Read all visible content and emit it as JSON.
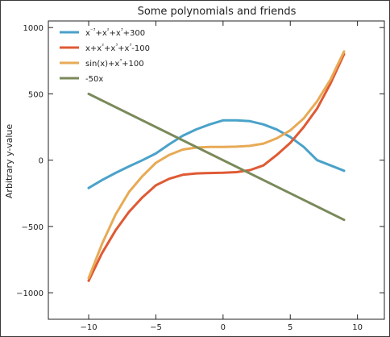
{
  "chart_data": {
    "type": "line",
    "title": "Some polynomials and friends",
    "xlabel": "",
    "ylabel": "Arbitrary y-value",
    "xlim": [
      -13,
      12
    ],
    "ylim": [
      -1200,
      1050
    ],
    "xticks": [
      -10,
      -5,
      0,
      5,
      10
    ],
    "xtick_labels": [
      "−10",
      "−5",
      "0",
      "5",
      "10"
    ],
    "yticks": [
      -1000,
      -500,
      0,
      500,
      1000
    ],
    "ytick_labels": [
      "−1000",
      "−500",
      "0",
      "500",
      "1000"
    ],
    "grid": false,
    "legend_position": "top-left",
    "series": [
      {
        "name": "x⁻³+x²+x³+300",
        "legend_main": "x",
        "legend_parts": [
          {
            "t": "x"
          },
          {
            "t": "⁻³",
            "sup": true
          },
          {
            "t": "+x"
          },
          {
            "t": "²",
            "sup": true
          },
          {
            "t": "+x"
          },
          {
            "t": "³",
            "sup": true
          },
          {
            "t": "+300"
          }
        ],
        "color": "#4aa2c9",
        "x": [
          -10,
          -9,
          -8,
          -7,
          -6,
          -5,
          -4,
          -3,
          -2,
          -1,
          0,
          1,
          2,
          3,
          4,
          5,
          6,
          7,
          8,
          9
        ],
        "y": [
          -210,
          -150,
          -96,
          -47,
          0,
          50,
          120,
          184,
          232,
          270,
          300,
          300,
          294,
          270,
          231,
          175,
          100,
          0,
          -40,
          -80
        ]
      },
      {
        "name": "x+x²+x³+x³-100",
        "legend_parts": [
          {
            "t": "x+x"
          },
          {
            "t": "²",
            "sup": true
          },
          {
            "t": "+x"
          },
          {
            "t": "³",
            "sup": true
          },
          {
            "t": "+x"
          },
          {
            "t": "³",
            "sup": true
          },
          {
            "t": "-100"
          }
        ],
        "color": "#df5a34",
        "x": [
          -10,
          -9,
          -8,
          -7,
          -6,
          -5,
          -4,
          -3,
          -2,
          -1,
          0,
          1,
          2,
          3,
          4,
          5,
          6,
          7,
          8,
          9
        ],
        "y": [
          -910,
          -700,
          -530,
          -390,
          -280,
          -190,
          -140,
          -110,
          -100,
          -97,
          -95,
          -90,
          -75,
          -40,
          40,
          130,
          250,
          390,
          580,
          800
        ]
      },
      {
        "name": "sin(x)+x³+100",
        "legend_parts": [
          {
            "t": "sin(x)+x"
          },
          {
            "t": "³",
            "sup": true
          },
          {
            "t": "+100"
          }
        ],
        "color": "#e8aa55",
        "x": [
          -10,
          -9,
          -8,
          -7,
          -6,
          -5,
          -4,
          -3,
          -2,
          -1,
          0,
          1,
          2,
          3,
          4,
          5,
          6,
          7,
          8,
          9
        ],
        "y": [
          -890,
          -630,
          -410,
          -240,
          -120,
          -20,
          40,
          80,
          95,
          100,
          100,
          102,
          108,
          125,
          165,
          225,
          315,
          445,
          610,
          820
        ]
      },
      {
        "name": "-50x",
        "legend_parts": [
          {
            "t": "-50x"
          }
        ],
        "color": "#7a8a5a",
        "x": [
          -10,
          9
        ],
        "y": [
          500,
          -450
        ]
      }
    ]
  }
}
